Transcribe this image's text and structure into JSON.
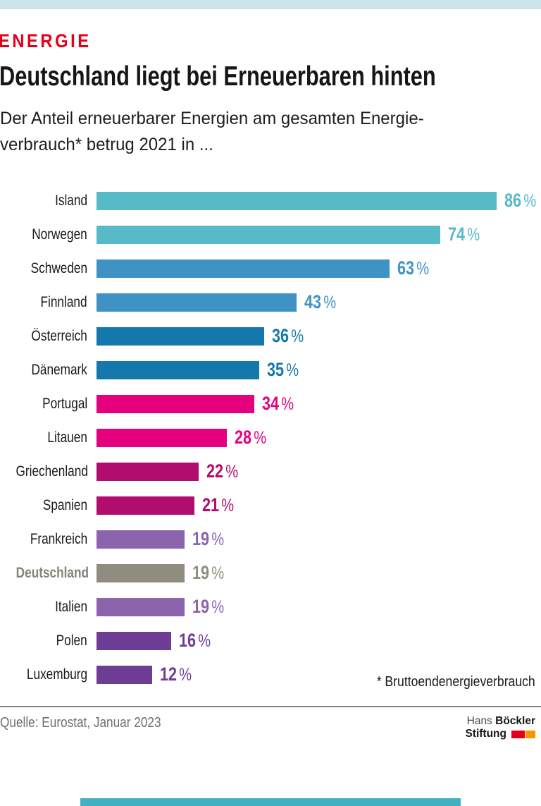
{
  "header": {
    "kicker": "ENERGIE",
    "title": "Deutschland liegt bei Erneuerbaren hinten",
    "subtitle_line1": "Der Anteil erneuerbarer Energien am gesamten Energie-",
    "subtitle_line2": "verbrauch* betrug 2021 in ..."
  },
  "footnote": "* Bruttoendenergieverbrauch",
  "footer": {
    "source": "Quelle: Eurostat, Januar 2023",
    "logo": {
      "line1_regular": "Hans",
      "line1_bold": "Böckler",
      "line2_bold": "Stiftung"
    }
  },
  "decor": {
    "topbar_color": "#cde3ec",
    "bottombar_color": "#41b0c0",
    "kicker_color": "#e50019",
    "logo_red": "#e2001b",
    "logo_orange": "#f49800"
  },
  "chart_data": {
    "type": "bar",
    "orientation": "horizontal",
    "title": "Deutschland liegt bei Erneuerbaren hinten",
    "subtitle": "Der Anteil erneuerbarer Energien am gesamten Energieverbrauch* betrug 2021 in ...",
    "unit": "%",
    "xlim": [
      0,
      100
    ],
    "grid": false,
    "legend": false,
    "categories": [
      "Island",
      "Norwegen",
      "Schweden",
      "Finnland",
      "Österreich",
      "Dänemark",
      "Portugal",
      "Litauen",
      "Griechenland",
      "Spanien",
      "Frankreich",
      "Deutschland",
      "Italien",
      "Polen",
      "Luxemburg"
    ],
    "values": [
      86,
      74,
      63,
      43,
      36,
      35,
      34,
      28,
      22,
      21,
      19,
      19,
      19,
      16,
      12
    ],
    "bar_colors": [
      "#57bac7",
      "#57bac7",
      "#3e92c4",
      "#3e92c4",
      "#1478ad",
      "#1478ad",
      "#e5007d",
      "#e5007d",
      "#b00d6e",
      "#b00d6e",
      "#8b64ad",
      "#8f8c80",
      "#8b64ad",
      "#6e3d96",
      "#6e3d96"
    ],
    "highlight_category": "Deutschland",
    "highlight_label_color": "#85827a"
  }
}
